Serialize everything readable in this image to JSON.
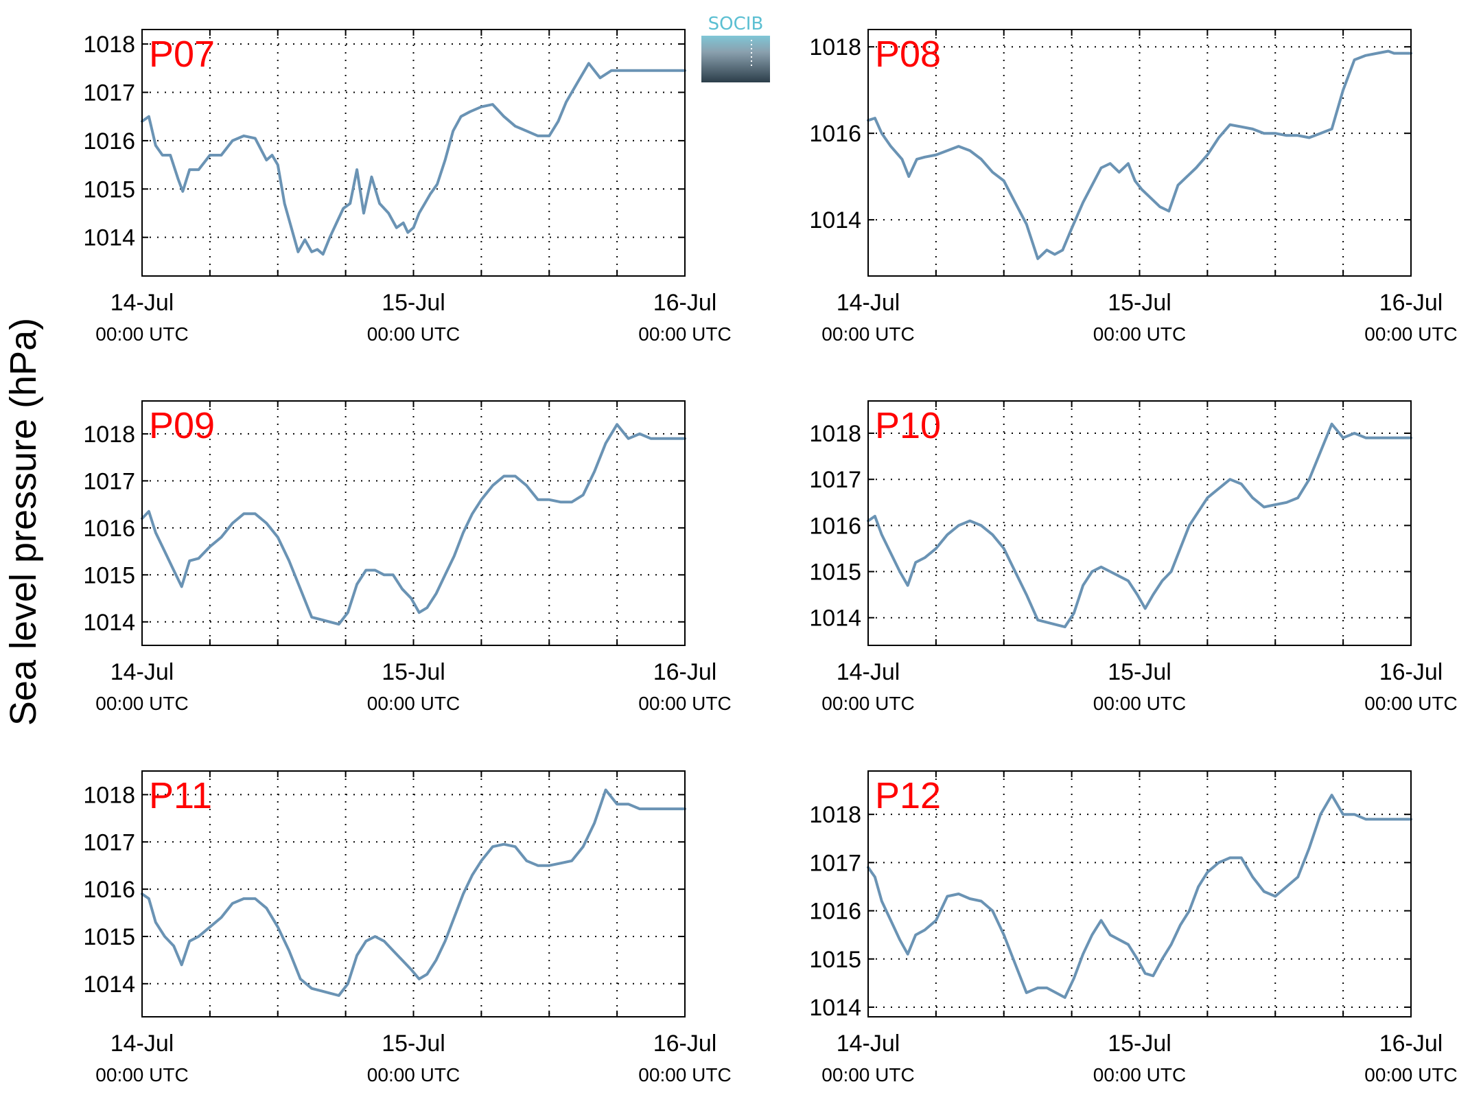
{
  "figure": {
    "ylabel": "Sea level pressure (hPa)",
    "logo_text": "SOCIB",
    "colors": {
      "line": "#6a93b4",
      "panel_label": "#ff0000",
      "axes": "#000000",
      "grid": "#000000"
    }
  },
  "chart_data": [
    {
      "type": "line",
      "title": "P07",
      "xticks": [
        {
          "top": "14-Jul",
          "bottom": "00:00 UTC"
        },
        {
          "top": "15-Jul",
          "bottom": "00:00 UTC"
        },
        {
          "top": "16-Jul",
          "bottom": "00:00 UTC"
        }
      ],
      "xlim": [
        0,
        48
      ],
      "ylim": [
        1013.2,
        1018.3
      ],
      "yticks": [
        1014,
        1015,
        1016,
        1017,
        1018
      ],
      "grid": true,
      "series": [
        {
          "color": "#6a93b4",
          "x": [
            0,
            0.6,
            1.2,
            1.8,
            2.5,
            3.2,
            3.6,
            4.2,
            5.0,
            6.0,
            7.0,
            8.0,
            9.0,
            10.0,
            11.0,
            11.5,
            12.0,
            12.6,
            13.2,
            13.8,
            14.4,
            15.0,
            15.5,
            16.0,
            16.6,
            17.2,
            17.8,
            18.4,
            19.0,
            19.6,
            20.3,
            21.0,
            21.8,
            22.5,
            23.1,
            23.5,
            24.0,
            24.5,
            25.0,
            25.5,
            26.1,
            26.8,
            27.5,
            28.2,
            29.0,
            30.0,
            31.0,
            32.0,
            33.0,
            34.0,
            35.0,
            36.0,
            36.8,
            37.5,
            38.5,
            39.5,
            40.5,
            41.5,
            42.5,
            43.5,
            44.5,
            45.5,
            46.0,
            46.5,
            47.0,
            47.5,
            48.0
          ],
          "y": [
            1016.4,
            1016.5,
            1015.9,
            1015.7,
            1015.7,
            1015.2,
            1014.95,
            1015.4,
            1015.4,
            1015.7,
            1015.7,
            1016.0,
            1016.1,
            1016.05,
            1015.6,
            1015.7,
            1015.5,
            1014.7,
            1014.2,
            1013.7,
            1013.95,
            1013.7,
            1013.75,
            1013.65,
            1014.0,
            1014.3,
            1014.6,
            1014.7,
            1015.4,
            1014.5,
            1015.25,
            1014.7,
            1014.5,
            1014.2,
            1014.3,
            1014.1,
            1014.2,
            1014.5,
            1014.7,
            1014.9,
            1015.1,
            1015.6,
            1016.2,
            1016.5,
            1016.6,
            1016.7,
            1016.75,
            1016.5,
            1016.3,
            1016.2,
            1016.1,
            1016.1,
            1016.4,
            1016.8,
            1017.2,
            1017.6,
            1017.3,
            1017.45,
            1017.45,
            1017.45,
            1017.45,
            1017.45,
            1017.45,
            1017.45,
            1017.45,
            1017.45,
            1017.45
          ]
        }
      ]
    },
    {
      "type": "line",
      "title": "P08",
      "xticks": [
        {
          "top": "14-Jul",
          "bottom": "00:00 UTC"
        },
        {
          "top": "15-Jul",
          "bottom": "00:00 UTC"
        },
        {
          "top": "16-Jul",
          "bottom": "00:00 UTC"
        }
      ],
      "xlim": [
        0,
        48
      ],
      "ylim": [
        1012.7,
        1018.4
      ],
      "yticks": [
        1014,
        1016,
        1018
      ],
      "grid": true,
      "series": [
        {
          "color": "#6a93b4",
          "x": [
            0,
            0.6,
            1.2,
            2.0,
            3.0,
            3.6,
            4.3,
            5.0,
            6.0,
            7.0,
            8.0,
            9.0,
            10.0,
            11.0,
            12.0,
            13.0,
            14.0,
            15.0,
            15.8,
            16.5,
            17.2,
            18.0,
            19.0,
            19.8,
            20.6,
            21.4,
            22.2,
            23.0,
            23.6,
            24.2,
            25.0,
            25.8,
            26.6,
            27.4,
            28.2,
            29.0,
            30.0,
            31.0,
            32.0,
            33.0,
            34.0,
            35.0,
            36.0,
            37.0,
            38.0,
            39.0,
            40.0,
            41.0,
            42.0,
            43.0,
            44.0,
            45.0,
            46.0,
            46.5,
            47.0,
            47.5,
            48.0
          ],
          "y": [
            1016.3,
            1016.35,
            1016.0,
            1015.7,
            1015.4,
            1015.0,
            1015.4,
            1015.45,
            1015.5,
            1015.6,
            1015.7,
            1015.6,
            1015.4,
            1015.1,
            1014.9,
            1014.4,
            1013.9,
            1013.1,
            1013.3,
            1013.2,
            1013.3,
            1013.8,
            1014.4,
            1014.8,
            1015.2,
            1015.3,
            1015.1,
            1015.3,
            1014.9,
            1014.7,
            1014.5,
            1014.3,
            1014.2,
            1014.8,
            1015.0,
            1015.2,
            1015.5,
            1015.9,
            1016.2,
            1016.15,
            1016.1,
            1016.0,
            1016.0,
            1015.95,
            1015.95,
            1015.9,
            1016.0,
            1016.1,
            1017.0,
            1017.7,
            1017.8,
            1017.85,
            1017.9,
            1017.85,
            1017.85,
            1017.85,
            1017.85
          ]
        }
      ]
    },
    {
      "type": "line",
      "title": "P09",
      "xticks": [
        {
          "top": "14-Jul",
          "bottom": "00:00 UTC"
        },
        {
          "top": "15-Jul",
          "bottom": "00:00 UTC"
        },
        {
          "top": "16-Jul",
          "bottom": "00:00 UTC"
        }
      ],
      "xlim": [
        0,
        48
      ],
      "ylim": [
        1013.5,
        1018.7
      ],
      "yticks": [
        1014,
        1015,
        1016,
        1017,
        1018
      ],
      "grid": true,
      "series": [
        {
          "color": "#6a93b4",
          "x": [
            0,
            0.6,
            1.2,
            2.0,
            2.8,
            3.5,
            4.2,
            5.0,
            6.0,
            7.0,
            8.0,
            9.0,
            10.0,
            11.0,
            12.0,
            13.0,
            14.0,
            15.0,
            15.8,
            16.6,
            17.4,
            18.2,
            19.0,
            19.8,
            20.6,
            21.4,
            22.2,
            23.0,
            23.8,
            24.5,
            25.2,
            26.0,
            26.8,
            27.6,
            28.4,
            29.2,
            30.0,
            31.0,
            32.0,
            33.0,
            34.0,
            35.0,
            36.0,
            37.0,
            38.0,
            39.0,
            40.0,
            41.0,
            42.0,
            43.0,
            44.0,
            45.0,
            46.0,
            46.5,
            47.0,
            47.5,
            48.0
          ],
          "y": [
            1016.2,
            1016.35,
            1015.9,
            1015.5,
            1015.1,
            1014.75,
            1015.3,
            1015.35,
            1015.6,
            1015.8,
            1016.1,
            1016.3,
            1016.3,
            1016.1,
            1015.8,
            1015.3,
            1014.7,
            1014.1,
            1014.05,
            1014.0,
            1013.95,
            1014.2,
            1014.8,
            1015.1,
            1015.1,
            1015.0,
            1015.0,
            1014.7,
            1014.5,
            1014.2,
            1014.3,
            1014.6,
            1015.0,
            1015.4,
            1015.9,
            1016.3,
            1016.6,
            1016.9,
            1017.1,
            1017.1,
            1016.9,
            1016.6,
            1016.6,
            1016.55,
            1016.55,
            1016.7,
            1017.2,
            1017.8,
            1018.2,
            1017.9,
            1018.0,
            1017.9,
            1017.9,
            1017.9,
            1017.9,
            1017.9,
            1017.9
          ]
        }
      ]
    },
    {
      "type": "line",
      "title": "P10",
      "xticks": [
        {
          "top": "14-Jul",
          "bottom": "00:00 UTC"
        },
        {
          "top": "15-Jul",
          "bottom": "00:00 UTC"
        },
        {
          "top": "16-Jul",
          "bottom": "00:00 UTC"
        }
      ],
      "xlim": [
        0,
        48
      ],
      "ylim": [
        1013.4,
        1018.7
      ],
      "yticks": [
        1014,
        1015,
        1016,
        1017,
        1018
      ],
      "grid": true,
      "series": [
        {
          "color": "#6a93b4",
          "x": [
            0,
            0.6,
            1.2,
            2.0,
            2.8,
            3.5,
            4.2,
            5.0,
            6.0,
            7.0,
            8.0,
            9.0,
            10.0,
            11.0,
            12.0,
            13.0,
            14.0,
            15.0,
            15.8,
            16.6,
            17.4,
            18.2,
            19.0,
            19.8,
            20.6,
            21.4,
            22.2,
            23.0,
            23.8,
            24.5,
            25.2,
            26.0,
            26.8,
            27.6,
            28.4,
            29.2,
            30.0,
            31.0,
            32.0,
            33.0,
            34.0,
            35.0,
            36.0,
            37.0,
            38.0,
            39.0,
            40.0,
            41.0,
            42.0,
            43.0,
            44.0,
            45.0,
            46.0,
            46.5,
            47.0,
            47.5,
            48.0
          ],
          "y": [
            1016.1,
            1016.2,
            1015.8,
            1015.4,
            1015.0,
            1014.7,
            1015.2,
            1015.3,
            1015.5,
            1015.8,
            1016.0,
            1016.1,
            1016.0,
            1015.8,
            1015.5,
            1015.0,
            1014.5,
            1013.95,
            1013.9,
            1013.85,
            1013.8,
            1014.1,
            1014.7,
            1015.0,
            1015.1,
            1015.0,
            1014.9,
            1014.8,
            1014.5,
            1014.2,
            1014.5,
            1014.8,
            1015.0,
            1015.5,
            1016.0,
            1016.3,
            1016.6,
            1016.8,
            1017.0,
            1016.9,
            1016.6,
            1016.4,
            1016.45,
            1016.5,
            1016.6,
            1017.0,
            1017.6,
            1018.2,
            1017.9,
            1018.0,
            1017.9,
            1017.9,
            1017.9,
            1017.9,
            1017.9,
            1017.9,
            1017.9
          ]
        }
      ]
    },
    {
      "type": "line",
      "title": "P11",
      "xticks": [
        {
          "top": "14-Jul",
          "bottom": "00:00 UTC"
        },
        {
          "top": "15-Jul",
          "bottom": "00:00 UTC"
        },
        {
          "top": "16-Jul",
          "bottom": "00:00 UTC"
        }
      ],
      "xlim": [
        0,
        48
      ],
      "ylim": [
        1013.3,
        1018.5
      ],
      "yticks": [
        1014,
        1015,
        1016,
        1017,
        1018
      ],
      "grid": true,
      "series": [
        {
          "color": "#6a93b4",
          "x": [
            0,
            0.6,
            1.2,
            2.0,
            2.8,
            3.5,
            4.2,
            5.0,
            6.0,
            7.0,
            8.0,
            9.0,
            10.0,
            11.0,
            12.0,
            13.0,
            14.0,
            15.0,
            15.8,
            16.6,
            17.4,
            18.2,
            19.0,
            19.8,
            20.6,
            21.4,
            22.2,
            23.0,
            23.8,
            24.5,
            25.2,
            26.0,
            26.8,
            27.6,
            28.4,
            29.2,
            30.0,
            31.0,
            32.0,
            33.0,
            34.0,
            35.0,
            36.0,
            37.0,
            38.0,
            39.0,
            40.0,
            41.0,
            42.0,
            43.0,
            44.0,
            45.0,
            46.0,
            46.5,
            47.0,
            47.5,
            48.0
          ],
          "y": [
            1015.9,
            1015.8,
            1015.3,
            1015.0,
            1014.8,
            1014.4,
            1014.9,
            1015.0,
            1015.2,
            1015.4,
            1015.7,
            1015.8,
            1015.8,
            1015.6,
            1015.2,
            1014.7,
            1014.1,
            1013.9,
            1013.85,
            1013.8,
            1013.75,
            1014.0,
            1014.6,
            1014.9,
            1015.0,
            1014.9,
            1014.7,
            1014.5,
            1014.3,
            1014.1,
            1014.2,
            1014.5,
            1014.9,
            1015.4,
            1015.9,
            1016.3,
            1016.6,
            1016.9,
            1016.95,
            1016.9,
            1016.6,
            1016.5,
            1016.5,
            1016.55,
            1016.6,
            1016.9,
            1017.4,
            1018.1,
            1017.8,
            1017.8,
            1017.7,
            1017.7,
            1017.7,
            1017.7,
            1017.7,
            1017.7,
            1017.7
          ]
        }
      ]
    },
    {
      "type": "line",
      "title": "P12",
      "xticks": [
        {
          "top": "14-Jul",
          "bottom": "00:00 UTC"
        },
        {
          "top": "15-Jul",
          "bottom": "00:00 UTC"
        },
        {
          "top": "16-Jul",
          "bottom": "00:00 UTC"
        }
      ],
      "xlim": [
        0,
        48
      ],
      "ylim": [
        1013.8,
        1018.9
      ],
      "yticks": [
        1014,
        1015,
        1016,
        1017,
        1018
      ],
      "grid": true,
      "series": [
        {
          "color": "#6a93b4",
          "x": [
            0,
            0.6,
            1.2,
            2.0,
            2.8,
            3.5,
            4.2,
            5.0,
            6.0,
            7.0,
            8.0,
            9.0,
            10.0,
            11.0,
            12.0,
            13.0,
            14.0,
            15.0,
            15.8,
            16.6,
            17.4,
            18.2,
            19.0,
            19.8,
            20.6,
            21.4,
            22.2,
            23.0,
            23.8,
            24.5,
            25.2,
            26.0,
            26.8,
            27.6,
            28.4,
            29.2,
            30.0,
            31.0,
            32.0,
            33.0,
            34.0,
            35.0,
            36.0,
            37.0,
            38.0,
            39.0,
            40.0,
            41.0,
            42.0,
            43.0,
            44.0,
            45.0,
            46.0,
            46.5,
            47.0,
            47.5,
            48.0
          ],
          "y": [
            1016.9,
            1016.7,
            1016.2,
            1015.8,
            1015.4,
            1015.1,
            1015.5,
            1015.6,
            1015.8,
            1016.3,
            1016.35,
            1016.25,
            1016.2,
            1016.0,
            1015.5,
            1014.9,
            1014.3,
            1014.4,
            1014.4,
            1014.3,
            1014.2,
            1014.6,
            1015.1,
            1015.5,
            1015.8,
            1015.5,
            1015.4,
            1015.3,
            1015.0,
            1014.7,
            1014.65,
            1015.0,
            1015.3,
            1015.7,
            1016.0,
            1016.5,
            1016.8,
            1017.0,
            1017.1,
            1017.1,
            1016.7,
            1016.4,
            1016.3,
            1016.5,
            1016.7,
            1017.3,
            1018.0,
            1018.4,
            1018.0,
            1018.0,
            1017.9,
            1017.9,
            1017.9,
            1017.9,
            1017.9,
            1017.9,
            1017.9
          ]
        }
      ]
    }
  ]
}
